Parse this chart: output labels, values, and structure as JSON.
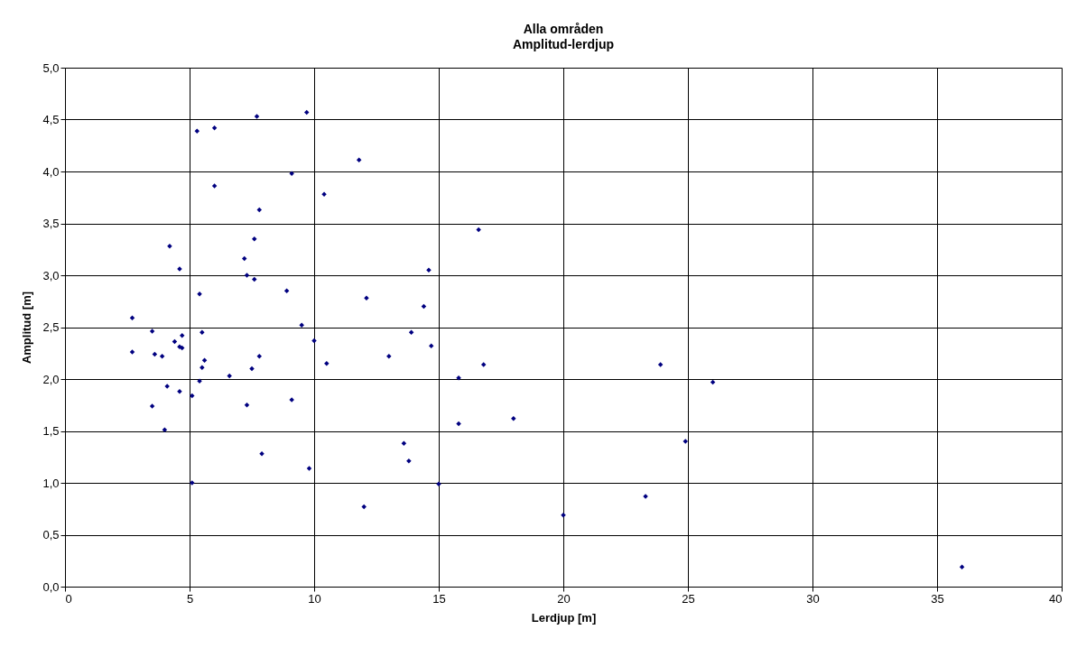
{
  "chart_data": {
    "type": "scatter",
    "title": "Alla områden",
    "subtitle": "Amplitud-lerdjup",
    "xlabel": "Lerdjup [m]",
    "ylabel": "Amplitud [m]",
    "x": [
      2.7,
      2.7,
      3.5,
      3.6,
      3.9,
      3.5,
      4.0,
      4.1,
      4.2,
      4.4,
      4.6,
      4.6,
      4.7,
      4.7,
      4.6,
      5.1,
      5.1,
      5.3,
      5.4,
      5.4,
      5.5,
      5.5,
      5.6,
      6.0,
      6.0,
      6.6,
      7.2,
      7.3,
      7.3,
      7.5,
      7.6,
      7.6,
      7.7,
      7.8,
      7.8,
      7.9,
      8.9,
      9.1,
      9.1,
      9.5,
      9.7,
      9.8,
      10.0,
      10.4,
      10.5,
      11.8,
      12.1,
      12.0,
      13.0,
      13.6,
      13.8,
      13.9,
      14.4,
      14.6,
      14.7,
      15.0,
      15.8,
      15.8,
      16.6,
      16.8,
      18.0,
      20.0,
      23.3,
      23.9,
      24.9,
      26.0,
      36.0
    ],
    "values": [
      2.59,
      2.26,
      2.46,
      2.24,
      2.22,
      1.74,
      1.51,
      1.93,
      3.28,
      2.36,
      3.06,
      2.31,
      2.42,
      2.3,
      1.88,
      1.84,
      1.0,
      4.39,
      2.82,
      1.98,
      2.45,
      2.11,
      2.18,
      4.42,
      3.86,
      2.03,
      3.16,
      3.0,
      1.75,
      2.1,
      2.96,
      3.35,
      4.53,
      3.63,
      2.22,
      1.28,
      2.85,
      3.98,
      1.8,
      2.52,
      4.57,
      1.14,
      2.37,
      3.78,
      2.15,
      4.11,
      2.78,
      0.77,
      2.22,
      1.38,
      1.21,
      2.45,
      2.7,
      3.05,
      2.32,
      0.99,
      2.01,
      1.57,
      3.44,
      2.14,
      1.62,
      0.69,
      0.87,
      2.14,
      1.4,
      1.97,
      0.19
    ],
    "color": "#000080",
    "marker": "diamond",
    "grid": true,
    "xlim": [
      0,
      40
    ],
    "xticks": [
      0,
      5,
      10,
      15,
      20,
      25,
      30,
      35,
      40
    ],
    "ylim": [
      0,
      5
    ],
    "yticks": [
      {
        "value": 0,
        "label": "0,0"
      },
      {
        "value": 0.5,
        "label": "0,5"
      },
      {
        "value": 1,
        "label": "1,0"
      },
      {
        "value": 1.5,
        "label": "1,5"
      },
      {
        "value": 2,
        "label": "2,0"
      },
      {
        "value": 2.5,
        "label": "2,5"
      },
      {
        "value": 3,
        "label": "3,0"
      },
      {
        "value": 3.5,
        "label": "3,5"
      },
      {
        "value": 4,
        "label": "4,0"
      },
      {
        "value": 4.5,
        "label": "4,5"
      },
      {
        "value": 5,
        "label": "5,0"
      }
    ]
  }
}
